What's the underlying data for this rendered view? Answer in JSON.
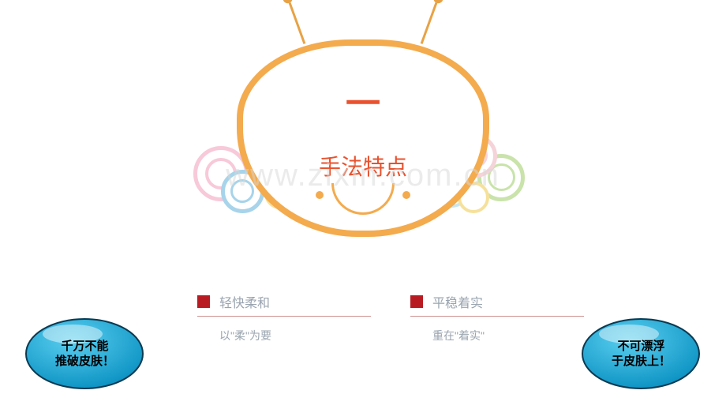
{
  "watermark": "www.zixin.com.cn",
  "colors": {
    "tv_border": "#f3ab4e",
    "title": "#e8522e",
    "feature_square": "#b81c22",
    "feature_title": "#9aa4af",
    "feature_desc": "#9aa4af",
    "underline": "#ca928f",
    "bubble_fill": "#11b0e1",
    "bubble_stroke": "#0a3a52",
    "bubble_text": "#000000"
  },
  "swirl_colors": {
    "pink": "#f7c9d9",
    "blue": "#a7d4ea",
    "green": "#c9e3ab",
    "yellow": "#f6e19b",
    "lightpink": "#f5d3d9",
    "lightblue": "#c9e6ef"
  },
  "title": {
    "num": "一",
    "text": "手法特点"
  },
  "features": {
    "left": {
      "title": "轻快柔和",
      "desc": "以\"柔\"为要"
    },
    "right": {
      "title": "平稳着实",
      "desc": "重在\"着实\""
    }
  },
  "bubbles": {
    "left": "千万不能\n推破皮肤！",
    "right": "不可漂浮\n于皮肤上！"
  }
}
